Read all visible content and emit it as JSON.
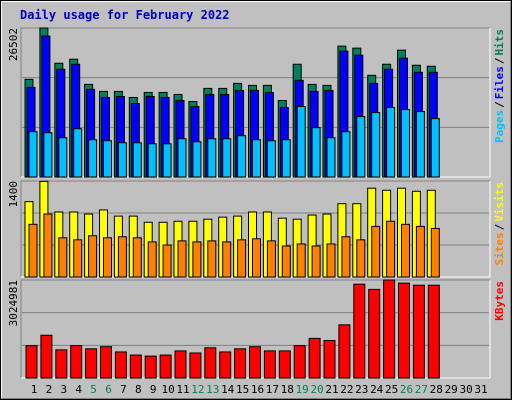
{
  "chart_data": [
    {
      "type": "bar",
      "title": "Daily usage for February 2022",
      "ylim": [
        0,
        26502
      ],
      "yticks": [
        26502
      ],
      "legend_separator": "/",
      "series": [
        {
          "name": "Pages",
          "color": "#00c0ff",
          "values": [
            8058,
            7879,
            6984,
            8595,
            6626,
            6446,
            6088,
            6088,
            5909,
            5909,
            6805,
            6267,
            6805,
            6805,
            7342,
            6626,
            6446,
            6626,
            12535,
            8774,
            6984,
            8058,
            10744,
            11460,
            12356,
            11998,
            11640,
            10386,
            null,
            null,
            null
          ]
        },
        {
          "name": "Files",
          "color": "#0000ff",
          "values": [
            15937,
            25069,
            19160,
            20055,
            15579,
            14146,
            14325,
            13072,
            14325,
            14146,
            13609,
            12535,
            14684,
            14684,
            15400,
            15400,
            15042,
            12356,
            17191,
            15221,
            15400,
            22384,
            21667,
            16653,
            19160,
            21130,
            18623,
            18623,
            null,
            null,
            null
          ]
        },
        {
          "name": "Hits",
          "color": "#00805c",
          "values": [
            17370,
            26502,
            20234,
            20951,
            16474,
            15221,
            15221,
            14146,
            15042,
            15042,
            14684,
            13430,
            15758,
            15758,
            16653,
            16295,
            16295,
            13609,
            20055,
            16474,
            16295,
            23279,
            22921,
            18086,
            20055,
            22563,
            19877,
            19697,
            null,
            null,
            null
          ]
        }
      ]
    },
    {
      "type": "bar",
      "ylim": [
        0,
        1400
      ],
      "yticks": [
        1400
      ],
      "legend_separator": "/",
      "series": [
        {
          "name": "Sites",
          "color": "#ff8000",
          "values": [
            768,
            918,
            572,
            542,
            602,
            572,
            587,
            572,
            512,
            467,
            527,
            512,
            527,
            512,
            542,
            557,
            527,
            452,
            482,
            452,
            482,
            587,
            542,
            738,
            813,
            768,
            738,
            708,
            null,
            null,
            null
          ]
        },
        {
          "name": "Visits",
          "color": "#ffff00",
          "values": [
            1099,
            1395,
            948,
            948,
            918,
            978,
            888,
            888,
            798,
            798,
            813,
            813,
            843,
            873,
            888,
            948,
            948,
            858,
            843,
            903,
            918,
            1069,
            1069,
            1295,
            1265,
            1295,
            1250,
            1265,
            null,
            null,
            null
          ]
        }
      ]
    },
    {
      "type": "bar",
      "ylim": [
        0,
        3024981
      ],
      "yticks": [
        3024981
      ],
      "categories": [
        "1",
        "2",
        "3",
        "4",
        "5",
        "6",
        "7",
        "8",
        "9",
        "10",
        "11",
        "12",
        "13",
        "14",
        "15",
        "16",
        "17",
        "18",
        "19",
        "20",
        "21",
        "22",
        "23",
        "24",
        "25",
        "26",
        "27",
        "28",
        "29",
        "30",
        "31"
      ],
      "category_colors": [
        "#000000",
        "#000000",
        "#000000",
        "#000000",
        "#00805c",
        "#00805c",
        "#000000",
        "#000000",
        "#000000",
        "#000000",
        "#000000",
        "#00805c",
        "#00805c",
        "#000000",
        "#000000",
        "#000000",
        "#000000",
        "#000000",
        "#00805c",
        "#00805c",
        "#000000",
        "#000000",
        "#000000",
        "#000000",
        "#000000",
        "#00805c",
        "#00805c",
        "#000000",
        "#000000",
        "#000000",
        "#000000"
      ],
      "series": [
        {
          "name": "KBytes",
          "color": "#ff0000",
          "values": [
            997655,
            1319480,
            868923,
            997655,
            901105,
            965473,
            804558,
            708010,
            675828,
            708010,
            836740,
            772375,
            933290,
            804558,
            901105,
            965473,
            836740,
            836740,
            997655,
            1222932,
            1158568,
            1641010,
            2896260,
            2735348,
            3024981,
            2928440,
            2864078,
            2864078,
            null,
            null,
            null
          ]
        }
      ]
    }
  ]
}
